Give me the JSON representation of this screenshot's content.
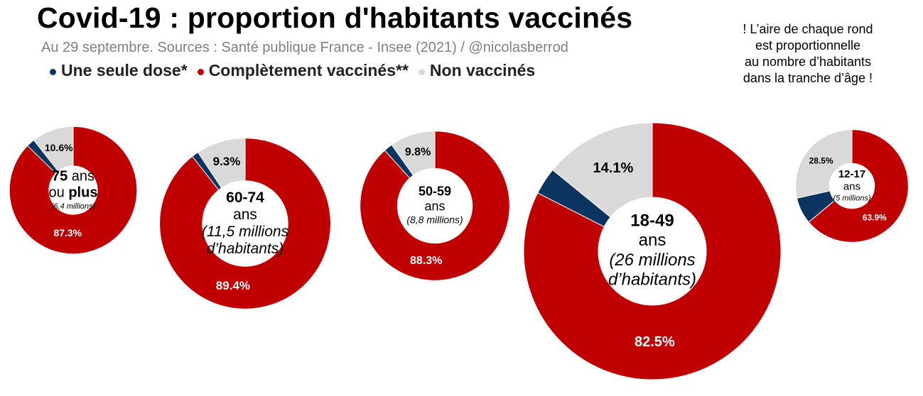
{
  "header": {
    "title": "Covid-19 : proportion d'habitants vaccinés",
    "subtitle": "Au 29 septembre. Sources : Santé publique France - Insee (2021) / @nicolasberrod"
  },
  "legend": [
    {
      "label": "Une seule dose*",
      "color": "#0c3460"
    },
    {
      "label": "Complètement vaccinés**",
      "color": "#c00000"
    },
    {
      "label": "Non vaccinés",
      "color": "#d9d9d9"
    }
  ],
  "note": {
    "lines": [
      "! L’aire de chaque rond",
      "est proportionnelle",
      "au nombre d’habitants",
      "dans la tranche d’âge !"
    ]
  },
  "chart_data": {
    "type": "donut",
    "series_names": [
      "Une seule dose*",
      "Complètement vaccinés**",
      "Non vaccinés"
    ],
    "colors": {
      "one_dose": "#0c3460",
      "full": "#c00000",
      "none": "#d9d9d9"
    },
    "groups": [
      {
        "age_label": "75 ans ou plus",
        "population": "(6,4 millions)",
        "population_millions": 6.4,
        "full": 87.3,
        "one_dose": 2.1,
        "none": 10.6,
        "full_label": "87.3%",
        "none_label": "10.6%",
        "center_lines": [
          {
            "parts": [
              {
                "text": "75",
                "bold": true
              },
              {
                "text": " ans",
                "bold": false
              }
            ]
          },
          {
            "parts": [
              {
                "text": "ou ",
                "bold": false
              },
              {
                "text": "plus",
                "bold": true
              }
            ]
          },
          {
            "parts": [
              {
                "text": "(6,4 millions)",
                "italic": true
              }
            ],
            "small": true
          }
        ]
      },
      {
        "age_label": "60-74 ans",
        "population": "(11,5 millions d’habitants)",
        "population_millions": 11.5,
        "full": 89.4,
        "one_dose": 1.3,
        "none": 9.3,
        "full_label": "89.4%",
        "none_label": "9.3%",
        "center_lines": [
          {
            "parts": [
              {
                "text": "60-74",
                "bold": true
              }
            ]
          },
          {
            "parts": [
              {
                "text": "ans"
              }
            ]
          },
          {
            "parts": [
              {
                "text": "(11,5 millions",
                "italic": true
              }
            ]
          },
          {
            "parts": [
              {
                "text": "d’habitants)",
                "italic": true
              }
            ]
          }
        ]
      },
      {
        "age_label": "50-59 ans",
        "population": "(8,8 millions)",
        "population_millions": 8.8,
        "full": 88.3,
        "one_dose": 1.9,
        "none": 9.8,
        "full_label": "88.3%",
        "none_label": "9.8%",
        "center_lines": [
          {
            "parts": [
              {
                "text": "50-59",
                "bold": true
              }
            ]
          },
          {
            "parts": [
              {
                "text": "ans"
              }
            ]
          },
          {
            "parts": [
              {
                "text": "(8,8 millions)",
                "italic": true
              }
            ],
            "small": true
          }
        ]
      },
      {
        "age_label": "18-49 ans",
        "population": "(26 millions d’habitants)",
        "population_millions": 26,
        "full": 82.5,
        "one_dose": 3.4,
        "none": 14.1,
        "full_label": "82.5%",
        "none_label": "14.1%",
        "center_lines": [
          {
            "parts": [
              {
                "text": "18-49",
                "bold": true
              }
            ]
          },
          {
            "parts": [
              {
                "text": "ans"
              }
            ]
          },
          {
            "parts": [
              {
                "text": "(26 millions",
                "italic": true
              }
            ]
          },
          {
            "parts": [
              {
                "text": "d’habitants)",
                "italic": true
              }
            ]
          }
        ]
      },
      {
        "age_label": "12-17 ans",
        "population": "(5 millions)",
        "population_millions": 5,
        "full": 63.9,
        "one_dose": 7.6,
        "none": 28.5,
        "full_label": "63.9%",
        "none_label": "28.5%",
        "center_lines": [
          {
            "parts": [
              {
                "text": "12-17",
                "bold": true
              }
            ]
          },
          {
            "parts": [
              {
                "text": "ans"
              }
            ]
          },
          {
            "parts": [
              {
                "text": "(5 millions)",
                "italic": true
              }
            ],
            "small": true
          }
        ]
      }
    ]
  }
}
